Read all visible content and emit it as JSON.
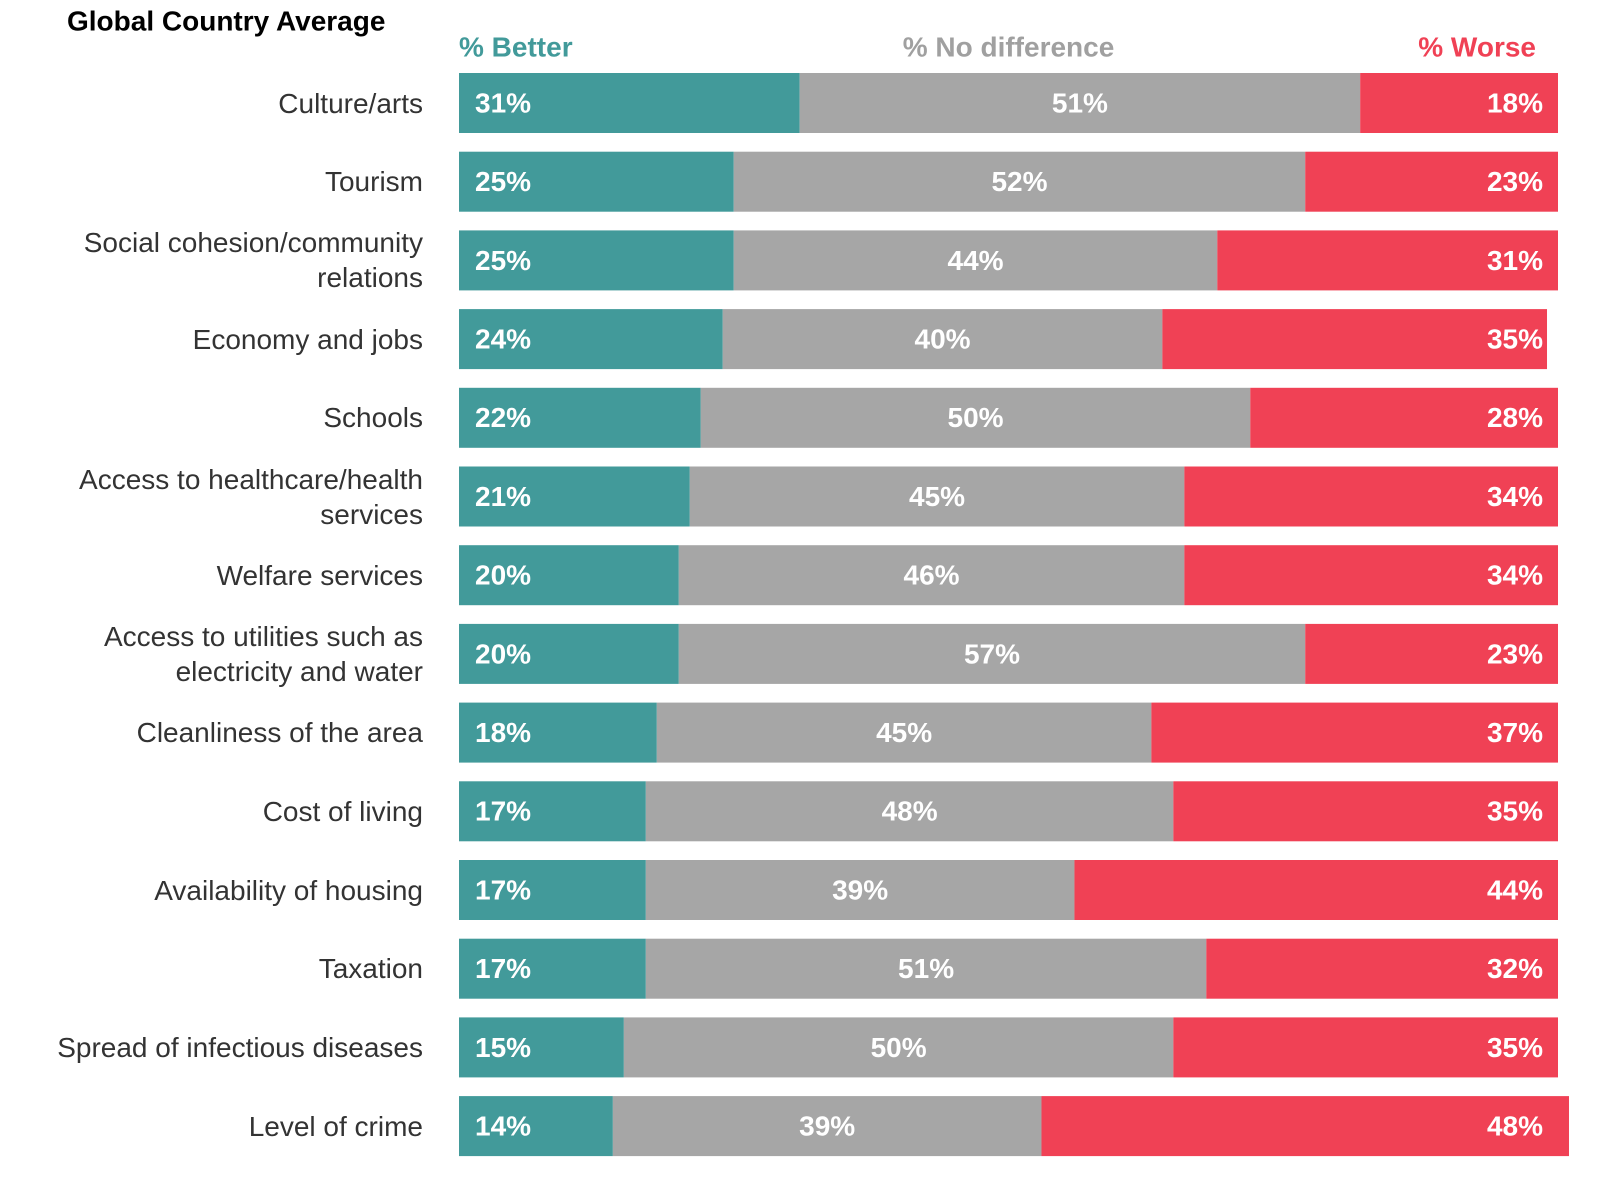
{
  "chart_data": {
    "type": "stacked-bar-horizontal",
    "title": "Global Country Average",
    "categories": [
      "Culture/arts",
      "Tourism",
      "Social cohesion/community relations",
      "Economy and jobs",
      "Schools",
      "Access to healthcare/health services",
      "Welfare services",
      "Access to utilities such as electricity and water",
      "Cleanliness of the area",
      "Cost of living",
      "Availability of housing",
      "Taxation",
      "Spread of infectious diseases",
      "Level of crime"
    ],
    "xlim": [
      0,
      100
    ],
    "series": [
      {
        "name": "% Better",
        "color": "#429a9a",
        "values": [
          31,
          25,
          25,
          24,
          22,
          21,
          20,
          20,
          18,
          17,
          17,
          17,
          15,
          14
        ],
        "value_labels": [
          "31%",
          "25%",
          "25%",
          "24%",
          "22%",
          "21%",
          "20%",
          "20%",
          "18%",
          "17%",
          "17%",
          "17%",
          "15%",
          "14%"
        ]
      },
      {
        "name": "% No difference",
        "color": "#a6a6a6",
        "values": [
          51,
          52,
          44,
          40,
          50,
          45,
          46,
          57,
          45,
          48,
          39,
          51,
          50,
          39
        ],
        "value_labels": [
          "51%",
          "52%",
          "44%",
          "40%",
          "50%",
          "45%",
          "46%",
          "57%",
          "45%",
          "48%",
          "39%",
          "51%",
          "50%",
          "39%"
        ]
      },
      {
        "name": "% Worse",
        "color": "#f04155",
        "values": [
          18,
          23,
          31,
          35,
          28,
          34,
          34,
          23,
          37,
          35,
          44,
          32,
          35,
          48
        ],
        "value_labels": [
          "18%",
          "23%",
          "31%",
          "35%",
          "28%",
          "34%",
          "34%",
          "23%",
          "37%",
          "35%",
          "44%",
          "32%",
          "35%",
          "48%"
        ]
      }
    ]
  }
}
